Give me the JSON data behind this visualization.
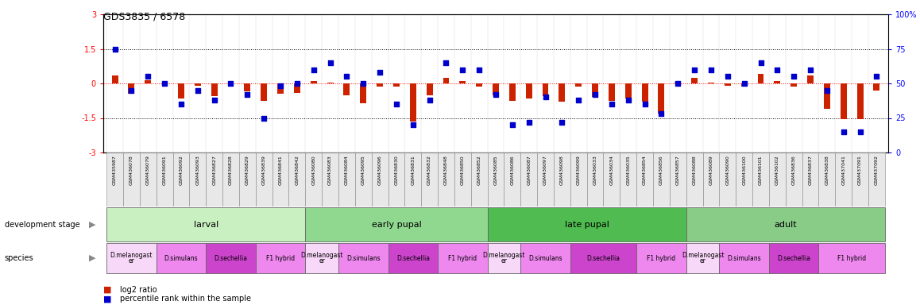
{
  "title": "GDS3835 / 6578",
  "samples": [
    "GSM435987",
    "GSM436078",
    "GSM436079",
    "GSM436091",
    "GSM436092",
    "GSM436093",
    "GSM436827",
    "GSM436828",
    "GSM436829",
    "GSM436839",
    "GSM436841",
    "GSM436842",
    "GSM436080",
    "GSM436083",
    "GSM436084",
    "GSM436095",
    "GSM436096",
    "GSM436830",
    "GSM436831",
    "GSM436832",
    "GSM436848",
    "GSM436850",
    "GSM436852",
    "GSM436085",
    "GSM436086",
    "GSM436087",
    "GSM436097",
    "GSM436098",
    "GSM436099",
    "GSM436033",
    "GSM436034",
    "GSM436035",
    "GSM436854",
    "GSM436856",
    "GSM436857",
    "GSM436088",
    "GSM436089",
    "GSM436090",
    "GSM436100",
    "GSM436101",
    "GSM436102",
    "GSM436836",
    "GSM436837",
    "GSM436838",
    "GSM437041",
    "GSM437091",
    "GSM437092"
  ],
  "log2_ratio": [
    0.35,
    -0.45,
    0.15,
    -0.05,
    -0.65,
    -0.1,
    -0.55,
    -0.05,
    -0.35,
    -0.75,
    -0.45,
    -0.4,
    0.1,
    0.05,
    -0.5,
    -0.85,
    -0.15,
    -0.15,
    -1.65,
    -0.5,
    0.25,
    0.1,
    -0.15,
    -0.5,
    -0.75,
    -0.65,
    -0.55,
    -0.8,
    -0.15,
    -0.6,
    -0.75,
    -0.65,
    -0.8,
    -1.3,
    0.05,
    0.25,
    0.05,
    -0.1,
    -0.15,
    0.4,
    0.1,
    -0.15,
    0.35,
    -1.1,
    -1.55,
    -1.55,
    -0.3
  ],
  "percentile": [
    75,
    45,
    55,
    50,
    35,
    45,
    38,
    50,
    42,
    25,
    48,
    50,
    60,
    65,
    55,
    50,
    58,
    35,
    20,
    38,
    65,
    60,
    60,
    42,
    20,
    22,
    40,
    22,
    38,
    42,
    35,
    38,
    35,
    28,
    50,
    60,
    60,
    55,
    50,
    65,
    60,
    55,
    60,
    45,
    15,
    15,
    55
  ],
  "dev_stages": [
    {
      "label": "larval",
      "start": 0,
      "end": 12,
      "color": "#c8f0c0"
    },
    {
      "label": "early pupal",
      "start": 12,
      "end": 23,
      "color": "#90d890"
    },
    {
      "label": "late pupal",
      "start": 23,
      "end": 35,
      "color": "#50bb50"
    },
    {
      "label": "adult",
      "start": 35,
      "end": 47,
      "color": "#88cc88"
    }
  ],
  "species_groups": [
    {
      "label": "D.melanogast\ner",
      "start": 0,
      "end": 3,
      "color": "#f8d8f8"
    },
    {
      "label": "D.simulans",
      "start": 3,
      "end": 6,
      "color": "#ee88ee"
    },
    {
      "label": "D.sechellia",
      "start": 6,
      "end": 9,
      "color": "#cc44cc"
    },
    {
      "label": "F1 hybrid",
      "start": 9,
      "end": 12,
      "color": "#ee88ee"
    },
    {
      "label": "D.melanogast\ner",
      "start": 12,
      "end": 14,
      "color": "#f8d8f8"
    },
    {
      "label": "D.simulans",
      "start": 14,
      "end": 17,
      "color": "#ee88ee"
    },
    {
      "label": "D.sechellia",
      "start": 17,
      "end": 20,
      "color": "#cc44cc"
    },
    {
      "label": "F1 hybrid",
      "start": 20,
      "end": 23,
      "color": "#ee88ee"
    },
    {
      "label": "D.melanogast\ner",
      "start": 23,
      "end": 25,
      "color": "#f8d8f8"
    },
    {
      "label": "D.simulans",
      "start": 25,
      "end": 28,
      "color": "#ee88ee"
    },
    {
      "label": "D.sechellia",
      "start": 28,
      "end": 32,
      "color": "#cc44cc"
    },
    {
      "label": "F1 hybrid",
      "start": 32,
      "end": 35,
      "color": "#ee88ee"
    },
    {
      "label": "D.melanogast\ner",
      "start": 35,
      "end": 37,
      "color": "#f8d8f8"
    },
    {
      "label": "D.simulans",
      "start": 37,
      "end": 40,
      "color": "#ee88ee"
    },
    {
      "label": "D.sechellia",
      "start": 40,
      "end": 43,
      "color": "#cc44cc"
    },
    {
      "label": "F1 hybrid",
      "start": 43,
      "end": 47,
      "color": "#ee88ee"
    }
  ],
  "bar_color": "#cc2200",
  "dot_color": "#0000cc",
  "ylim_left": [
    -3,
    3
  ],
  "left_yticks": [
    -3,
    -1.5,
    0,
    1.5,
    3
  ],
  "right_yticks": [
    0,
    25,
    50,
    75,
    100
  ],
  "right_yticklabels": [
    "0",
    "25",
    "50",
    "75",
    "100%"
  ]
}
